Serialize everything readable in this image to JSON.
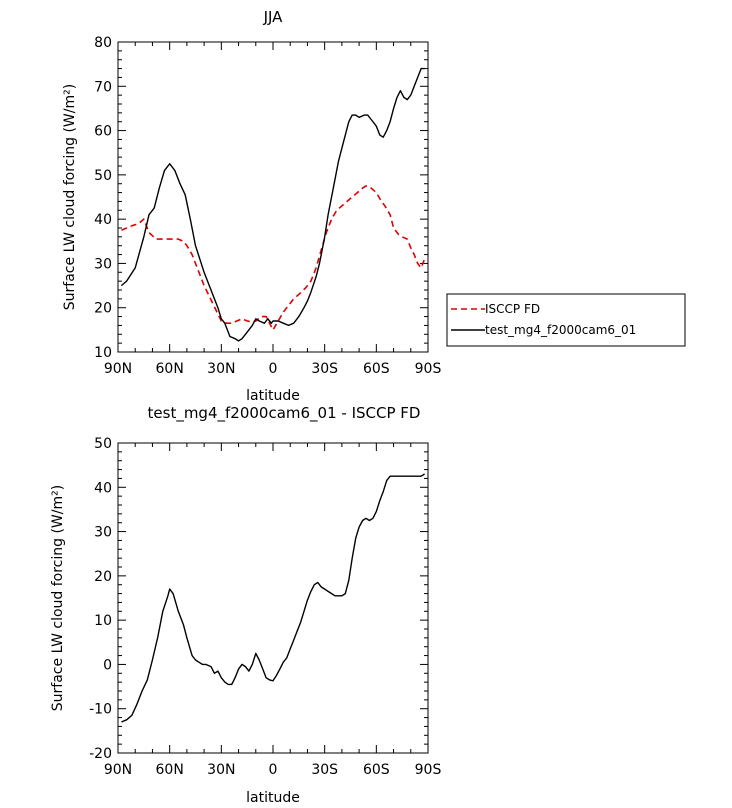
{
  "chart_data": [
    {
      "type": "line",
      "title": "JJA",
      "xlabel": "latitude",
      "ylabel": "Surface LW cloud forcing (W/m²)",
      "xlim": [
        90,
        -90
      ],
      "ylim": [
        10,
        80
      ],
      "xtick_values": [
        90,
        60,
        30,
        0,
        -30,
        -60,
        -90
      ],
      "xtick_labels": [
        "90N",
        "60N",
        "30N",
        "0",
        "30S",
        "60S",
        "90S"
      ],
      "yticks": [
        10,
        20,
        30,
        40,
        50,
        60,
        70,
        80
      ],
      "legend": {
        "position": "right",
        "entries": [
          "ISCCP FD",
          "test_mg4_f2000cam6_01"
        ]
      },
      "series": [
        {
          "name": "ISCCP FD",
          "color": "#e00000",
          "style": "dashed",
          "x": [
            88,
            85,
            82,
            78,
            75,
            72,
            68,
            65,
            60,
            55,
            52,
            50,
            47,
            45,
            40,
            35,
            30,
            27,
            24,
            21,
            18,
            15,
            12,
            10,
            7,
            4,
            2,
            0,
            -3,
            -6,
            -9,
            -12,
            -15,
            -19,
            -22,
            -25,
            -28,
            -31,
            -34,
            -37,
            -40,
            -43,
            -46,
            -49,
            -52,
            -54,
            -57,
            -60,
            -63,
            -65,
            -68,
            -70,
            -73,
            -75,
            -78,
            -80,
            -82,
            -84,
            -86,
            -88
          ],
          "y": [
            37.5,
            38,
            38.5,
            39,
            40,
            37,
            35.5,
            35.5,
            35.5,
            35.5,
            35,
            34,
            32,
            30,
            25,
            21,
            17,
            16.5,
            16.5,
            17,
            17.5,
            17,
            16.8,
            17,
            18,
            18,
            16.5,
            15,
            17,
            19,
            20.5,
            22,
            23,
            24.5,
            26,
            29,
            33,
            37,
            40,
            42,
            43,
            44,
            45,
            46,
            47,
            47.5,
            47,
            46,
            44,
            43,
            41,
            38,
            36.5,
            36,
            35.5,
            33.5,
            32,
            30,
            29,
            31
          ]
        },
        {
          "name": "test_mg4_f2000cam6_01",
          "color": "#000000",
          "style": "solid",
          "x": [
            88,
            85,
            80,
            75,
            72,
            69,
            66,
            63,
            60,
            57,
            54,
            51,
            48,
            45,
            40,
            35,
            32,
            30,
            28,
            25,
            22,
            20,
            18,
            15,
            12,
            10,
            8,
            5,
            3,
            1,
            0,
            -3,
            -6,
            -9,
            -12,
            -15,
            -18,
            -20,
            -22,
            -25,
            -27,
            -30,
            -32,
            -35,
            -38,
            -41,
            -44,
            -46,
            -48,
            -50,
            -53,
            -55,
            -57,
            -60,
            -62,
            -64,
            -66,
            -68,
            -70,
            -72,
            -74,
            -76,
            -78,
            -80,
            -82,
            -84,
            -86,
            -88
          ],
          "y": [
            25,
            26,
            29,
            36,
            41,
            42.5,
            47,
            51,
            52.5,
            51,
            48,
            45.5,
            40,
            34,
            28,
            23,
            20,
            17.5,
            16.5,
            13.5,
            13,
            12.5,
            13,
            14.5,
            16,
            17.5,
            17,
            16.5,
            17.5,
            16.5,
            17,
            17,
            16.5,
            16,
            16.5,
            18,
            20,
            21.5,
            23.5,
            27,
            30,
            36,
            41,
            47,
            53,
            57.5,
            62,
            63.5,
            63.5,
            63,
            63.5,
            63.5,
            62.5,
            61,
            59,
            58.5,
            60,
            62,
            65,
            67.5,
            69,
            67.5,
            67,
            68,
            70,
            72,
            74,
            74
          ]
        }
      ]
    },
    {
      "type": "line",
      "title": "test_mg4_f2000cam6_01 - ISCCP FD",
      "xlabel": "latitude",
      "ylabel": "Surface LW cloud forcing (W/m²)",
      "xlim": [
        90,
        -90
      ],
      "ylim": [
        -20,
        50
      ],
      "xtick_values": [
        90,
        60,
        30,
        0,
        -30,
        -60,
        -90
      ],
      "xtick_labels": [
        "90N",
        "60N",
        "30N",
        "0",
        "30S",
        "60S",
        "90S"
      ],
      "yticks": [
        -20,
        -10,
        0,
        10,
        20,
        30,
        40,
        50
      ],
      "series": [
        {
          "color": "#000000",
          "style": "solid",
          "x": [
            88,
            85,
            82,
            79,
            76,
            73,
            70,
            67,
            64,
            61,
            60,
            58,
            55,
            52,
            50,
            47,
            45,
            43,
            41,
            39,
            36,
            34,
            32,
            30,
            28,
            26,
            24,
            22,
            20,
            18,
            16,
            14,
            12,
            10,
            8,
            6,
            4,
            2,
            0,
            -2,
            -4,
            -6,
            -8,
            -10,
            -12,
            -14,
            -16,
            -18,
            -20,
            -22,
            -24,
            -26,
            -28,
            -30,
            -32,
            -34,
            -36,
            -38,
            -40,
            -42,
            -44,
            -46,
            -48,
            -50,
            -52,
            -54,
            -56,
            -58,
            -60,
            -62,
            -64,
            -66,
            -68,
            -70,
            -72,
            -74,
            -76,
            -78,
            -80,
            -82,
            -84,
            -86,
            -88
          ],
          "y": [
            -13,
            -12.5,
            -11.5,
            -9,
            -6,
            -3.5,
            1,
            6,
            12,
            15.5,
            17,
            16,
            12,
            9,
            6,
            2,
            1,
            0.5,
            0,
            0,
            -0.5,
            -2,
            -1.5,
            -3,
            -4,
            -4.5,
            -4.5,
            -3,
            -1,
            0,
            -0.5,
            -1.5,
            0,
            2.5,
            1,
            -1,
            -3,
            -3.5,
            -3.7,
            -2.5,
            -1,
            0.5,
            1.5,
            3.5,
            5.5,
            7.5,
            9.5,
            12,
            14.5,
            16.5,
            18,
            18.5,
            17.5,
            17,
            16.5,
            16,
            15.5,
            15.5,
            15.5,
            16,
            19,
            24,
            28.5,
            31,
            32.5,
            33,
            32.5,
            33,
            34.5,
            37,
            39,
            41.5,
            42.5,
            42.5,
            42.5,
            42.5,
            42.5,
            42.5,
            42.5,
            42.5,
            42.5,
            42.5,
            43
          ]
        }
      ]
    }
  ]
}
